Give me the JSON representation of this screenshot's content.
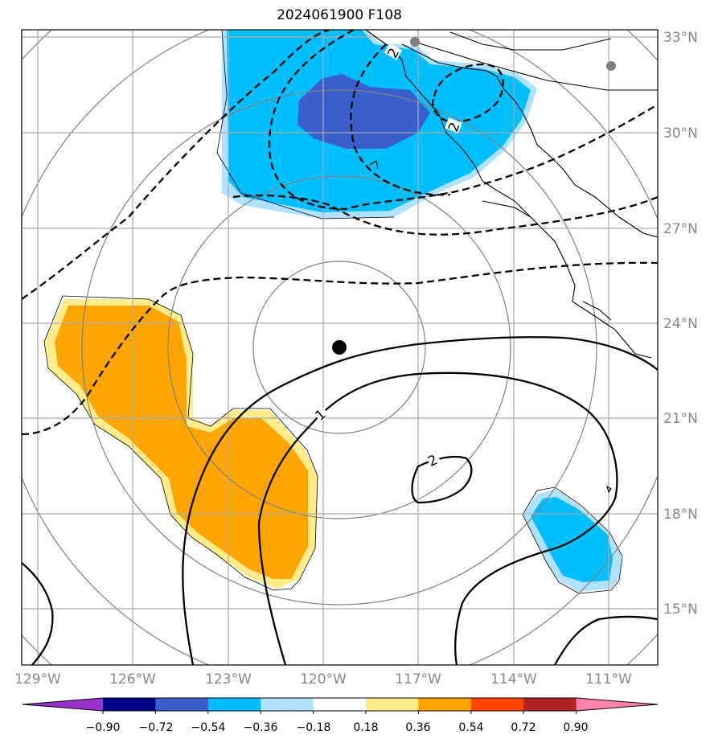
{
  "title": "2024061900 F108",
  "map": {
    "lon_labels": [
      "129°W",
      "126°W",
      "123°W",
      "120°W",
      "117°W",
      "114°W",
      "111°W"
    ],
    "lat_labels": [
      "33°N",
      "30°N",
      "27°N",
      "24°N",
      "21°N",
      "18°N",
      "15°N"
    ],
    "storm_center": {
      "lon": -119.5,
      "lat": 23.2
    },
    "contour_labels": [
      "1",
      "2",
      "2",
      "2"
    ]
  },
  "colorbar": {
    "tick_labels": [
      "−0.90",
      "−0.72",
      "−0.54",
      "−0.36",
      "−0.18",
      "0.18",
      "0.36",
      "0.54",
      "0.72",
      "0.90"
    ],
    "colors": [
      "#9932cc",
      "#00008b",
      "#3a5fcd",
      "#00bfff",
      "#b0e2ff",
      "#ffffff",
      "#ffec8b",
      "#ffa500",
      "#ff4500",
      "#b22222",
      "#ff82ab"
    ]
  },
  "colors": {
    "grid": "#aaaaaa",
    "range_rings": "#808080",
    "coast": "#000000",
    "negative_fill": "#00bfff",
    "negative_light": "#b0e2ff",
    "negative_strong": "#3a5fcd",
    "positive_fill": "#ffa500",
    "positive_light": "#ffec8b"
  }
}
